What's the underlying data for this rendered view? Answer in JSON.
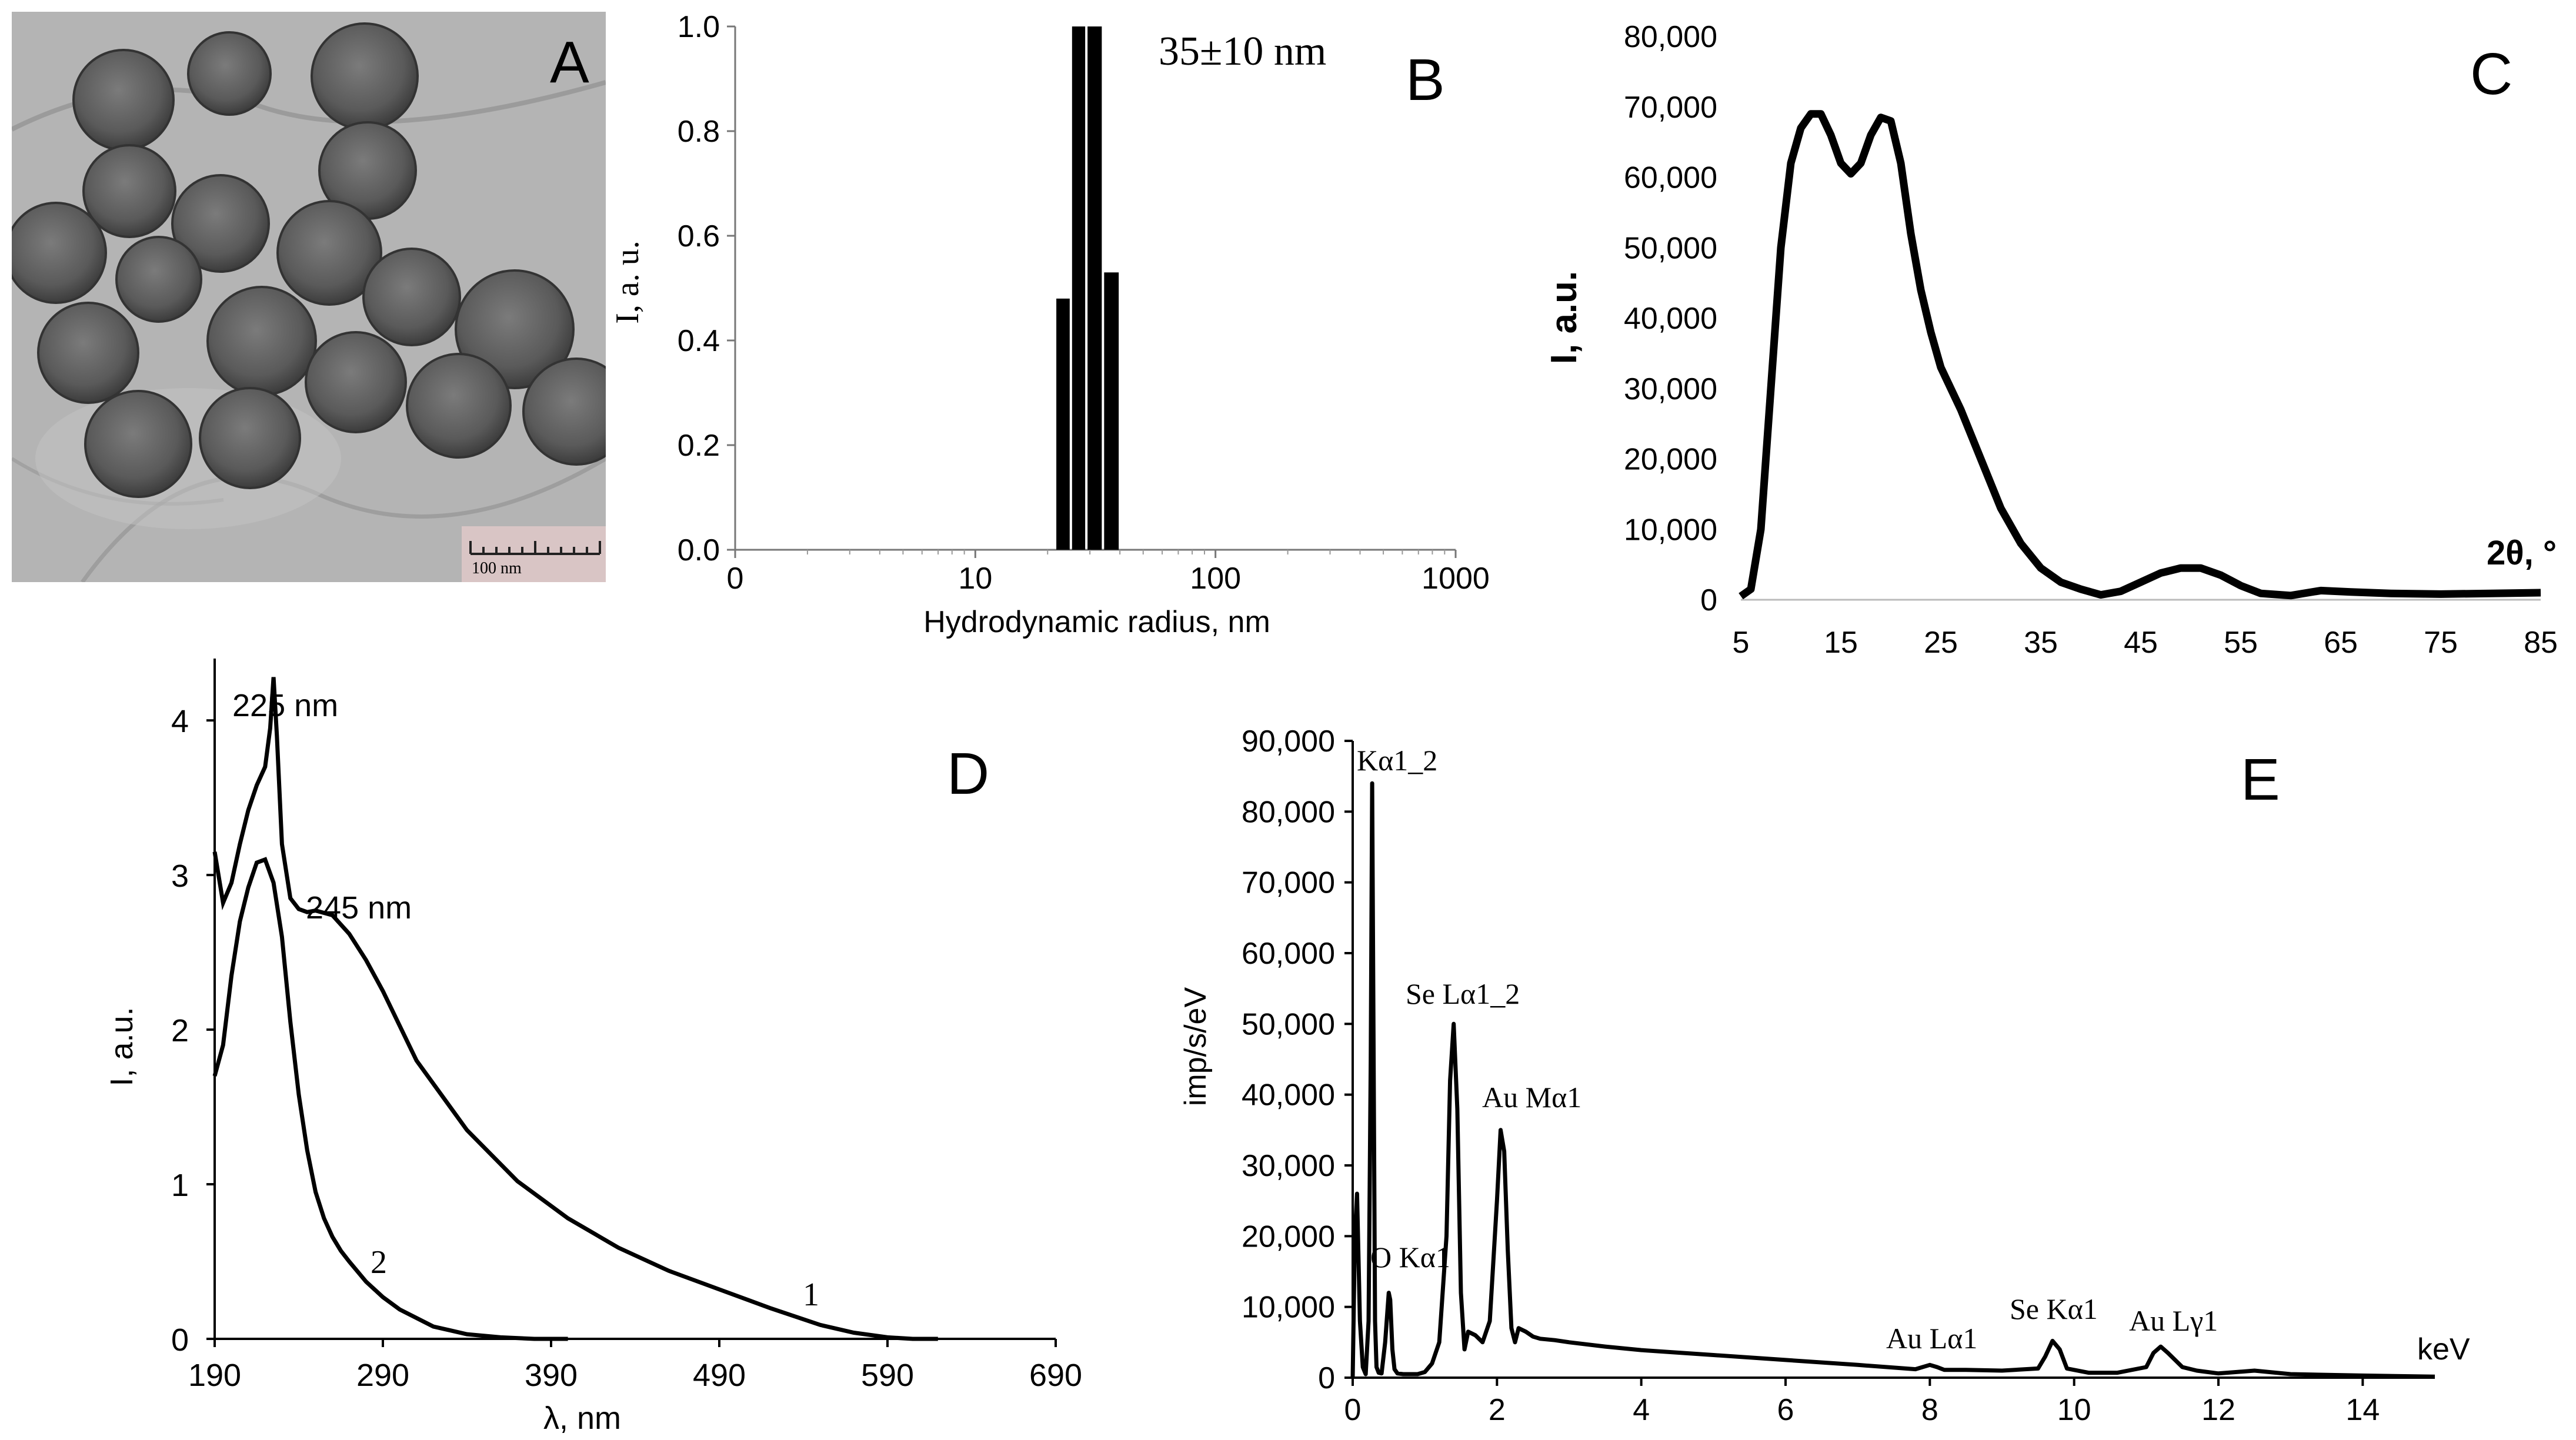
{
  "panel_labels": {
    "A": "A",
    "B": "B",
    "C": "C",
    "D": "D",
    "E": "E"
  },
  "tem": {
    "scale_text": "100 nm"
  },
  "chart_data": [
    {
      "id": "B",
      "type": "bar",
      "title": "",
      "annotation": "35±10 nm",
      "xlabel": "Hydrodynamic radius, nm",
      "ylabel": "I, a. u.",
      "xscale": "log",
      "xtick_labels": [
        "0",
        "10",
        "100",
        "1000"
      ],
      "ytick_labels": [
        "0.0",
        "0.2",
        "0.4",
        "0.6",
        "0.8",
        "1.0"
      ],
      "ylim": [
        0,
        1.0
      ],
      "bars": [
        {
          "from": 21.5,
          "to": 25,
          "value": 0.48
        },
        {
          "from": 25,
          "to": 29,
          "value": 1.0
        },
        {
          "from": 29,
          "to": 34,
          "value": 1.0
        },
        {
          "from": 34,
          "to": 40,
          "value": 0.53
        }
      ]
    },
    {
      "id": "C",
      "type": "line",
      "title": "",
      "xlabel": "2θ, °",
      "ylabel": "I, a.u.",
      "xlim": [
        5,
        85
      ],
      "ylim": [
        0,
        80000
      ],
      "xtick_labels": [
        "5",
        "15",
        "25",
        "35",
        "45",
        "55",
        "65",
        "75",
        "85"
      ],
      "ytick_labels": [
        "0",
        "10,000",
        "20,000",
        "30,000",
        "40,000",
        "50,000",
        "60,000",
        "70,000",
        "80,000"
      ],
      "x": [
        5,
        6,
        7,
        8,
        9,
        10,
        11,
        12,
        13,
        14,
        15,
        16,
        17,
        18,
        19,
        20,
        21,
        22,
        23,
        24,
        25,
        27,
        29,
        31,
        33,
        35,
        37,
        39,
        41,
        43,
        45,
        47,
        49,
        51,
        53,
        55,
        57,
        60,
        63,
        66,
        70,
        75,
        80,
        85
      ],
      "y": [
        500,
        1500,
        10000,
        30000,
        50000,
        62000,
        67000,
        69000,
        69000,
        66000,
        62000,
        60500,
        62000,
        66000,
        68500,
        68000,
        62000,
        52000,
        44000,
        38000,
        33000,
        27000,
        20000,
        13000,
        8000,
        4500,
        2500,
        1500,
        700,
        1200,
        2500,
        3800,
        4500,
        4500,
        3500,
        2000,
        900,
        600,
        1300,
        1100,
        900,
        800,
        900,
        1000
      ]
    },
    {
      "id": "D",
      "type": "line",
      "title": "",
      "xlabel": "λ, nm",
      "ylabel": "I, a.u.",
      "xlim": [
        190,
        690
      ],
      "ylim": [
        0,
        4.4
      ],
      "xtick_labels": [
        "190",
        "290",
        "390",
        "490",
        "590",
        "690"
      ],
      "ytick_labels": [
        "0",
        "1",
        "2",
        "3",
        "4"
      ],
      "annotations": [
        "225 nm",
        "245 nm"
      ],
      "series": [
        {
          "name": "1",
          "x": [
            190,
            195,
            200,
            205,
            210,
            215,
            220,
            223,
            225,
            227,
            230,
            235,
            240,
            245,
            250,
            260,
            270,
            280,
            290,
            310,
            340,
            370,
            400,
            430,
            460,
            490,
            520,
            550,
            570,
            590,
            605,
            620
          ],
          "y": [
            3.15,
            2.82,
            2.95,
            3.2,
            3.42,
            3.58,
            3.7,
            3.95,
            4.28,
            3.9,
            3.2,
            2.85,
            2.78,
            2.76,
            2.77,
            2.74,
            2.62,
            2.45,
            2.25,
            1.8,
            1.35,
            1.02,
            0.78,
            0.59,
            0.44,
            0.32,
            0.2,
            0.09,
            0.04,
            0.01,
            0.0,
            0.0
          ]
        },
        {
          "name": "2",
          "x": [
            190,
            195,
            200,
            205,
            210,
            215,
            220,
            225,
            230,
            235,
            240,
            245,
            250,
            255,
            260,
            265,
            270,
            280,
            290,
            300,
            320,
            340,
            360,
            380,
            400
          ],
          "y": [
            1.7,
            1.9,
            2.35,
            2.7,
            2.92,
            3.08,
            3.1,
            2.95,
            2.6,
            2.05,
            1.58,
            1.22,
            0.95,
            0.78,
            0.66,
            0.57,
            0.5,
            0.37,
            0.27,
            0.19,
            0.08,
            0.03,
            0.01,
            0.0,
            0.0
          ]
        }
      ]
    },
    {
      "id": "E",
      "type": "line",
      "title": "",
      "xlabel": "keV",
      "ylabel": "imp/s/eV",
      "xlim": [
        0,
        15
      ],
      "ylim": [
        0,
        90000
      ],
      "xtick_labels": [
        "0",
        "2",
        "4",
        "6",
        "8",
        "10",
        "12",
        "14"
      ],
      "ytick_labels": [
        "0",
        "10,000",
        "20,000",
        "30,000",
        "40,000",
        "50,000",
        "60,000",
        "70,000",
        "80,000",
        "90,000"
      ],
      "peak_labels": [
        "Kα1_2",
        "O Kα1",
        "Se Lα1_2",
        "Au Mα1",
        "Au Lα1",
        "Se Kα1",
        "Au Lγ1"
      ],
      "x": [
        0,
        0.03,
        0.06,
        0.1,
        0.14,
        0.18,
        0.22,
        0.25,
        0.27,
        0.29,
        0.31,
        0.33,
        0.36,
        0.4,
        0.45,
        0.5,
        0.52,
        0.55,
        0.58,
        0.62,
        0.7,
        0.8,
        0.9,
        1.0,
        1.1,
        1.2,
        1.3,
        1.35,
        1.4,
        1.45,
        1.5,
        1.55,
        1.6,
        1.7,
        1.8,
        1.9,
        2.0,
        2.05,
        2.1,
        2.15,
        2.2,
        2.25,
        2.3,
        2.4,
        2.5,
        2.6,
        2.8,
        3.0,
        3.5,
        4.0,
        5.0,
        6.0,
        7.0,
        7.8,
        8.0,
        8.1,
        8.2,
        8.5,
        9.0,
        9.5,
        9.6,
        9.7,
        9.8,
        9.9,
        10.2,
        10.6,
        11.0,
        11.1,
        11.2,
        11.3,
        11.5,
        11.7,
        12.0,
        12.5,
        13.0,
        14.0,
        15.0
      ],
      "y": [
        0,
        20000,
        26000,
        8000,
        1500,
        500,
        8000,
        45000,
        84000,
        45000,
        8000,
        1500,
        700,
        600,
        5000,
        12000,
        11000,
        4000,
        1200,
        600,
        500,
        500,
        500,
        800,
        2000,
        5000,
        20000,
        42000,
        50000,
        38000,
        12000,
        4000,
        6500,
        6000,
        5000,
        8000,
        25000,
        35000,
        32000,
        18000,
        7000,
        5000,
        7000,
        6500,
        5800,
        5500,
        5300,
        5000,
        4400,
        3900,
        3200,
        2500,
        1800,
        1200,
        1800,
        1500,
        1100,
        1100,
        1000,
        1300,
        3000,
        5200,
        4000,
        1300,
        700,
        700,
        1500,
        3500,
        4400,
        3500,
        1500,
        1000,
        600,
        1000,
        500,
        300,
        150
      ]
    }
  ]
}
